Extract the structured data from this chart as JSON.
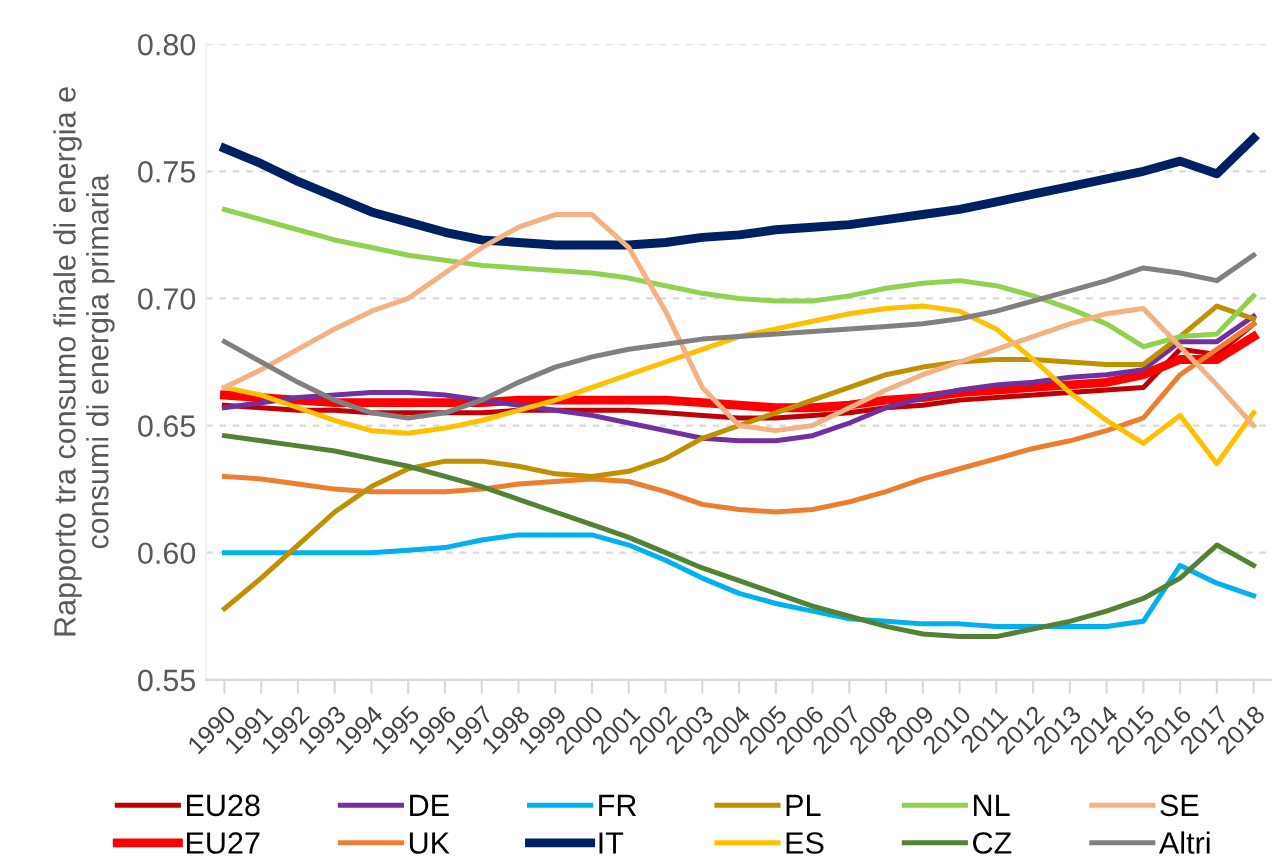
{
  "chart_data": {
    "type": "line",
    "ylabel": "Rapporto tra consumo finale di energia e\nconsumi di energia primaria",
    "categories": [
      "1990",
      "1991",
      "1992",
      "1993",
      "1994",
      "1995",
      "1996",
      "1997",
      "1998",
      "1999",
      "2000",
      "2001",
      "2002",
      "2003",
      "2004",
      "2005",
      "2006",
      "2007",
      "2008",
      "2009",
      "2010",
      "2011",
      "2012",
      "2013",
      "2014",
      "2015",
      "2016",
      "2017",
      "2018"
    ],
    "ylim": [
      0.55,
      0.8
    ],
    "yticks": [
      {
        "value": 0.55,
        "label": "0.55"
      },
      {
        "value": 0.6,
        "label": "0.60"
      },
      {
        "value": 0.65,
        "label": "0.65"
      },
      {
        "value": 0.7,
        "label": "0.70"
      },
      {
        "value": 0.75,
        "label": "0.75"
      },
      {
        "value": 0.8,
        "label": "0.80"
      }
    ],
    "grid": "y",
    "legend": "bottom",
    "marker": "none",
    "line_style": "solid",
    "series": [
      {
        "name": "EU28",
        "color": "#c00000",
        "values": [
          0.658,
          0.657,
          0.656,
          0.656,
          0.655,
          0.655,
          0.655,
          0.655,
          0.656,
          0.656,
          0.656,
          0.656,
          0.655,
          0.654,
          0.653,
          0.653,
          0.654,
          0.655,
          0.657,
          0.658,
          0.66,
          0.661,
          0.662,
          0.663,
          0.664,
          0.665,
          0.68,
          0.678,
          0.69
        ]
      },
      {
        "name": "EU27",
        "color": "#ff0000",
        "values": [
          0.662,
          0.661,
          0.66,
          0.659,
          0.659,
          0.659,
          0.659,
          0.659,
          0.66,
          0.66,
          0.66,
          0.66,
          0.66,
          0.659,
          0.658,
          0.657,
          0.657,
          0.658,
          0.66,
          0.661,
          0.663,
          0.664,
          0.665,
          0.666,
          0.667,
          0.67,
          0.676,
          0.676,
          0.685
        ]
      },
      {
        "name": "DE",
        "color": "#7030a0",
        "values": [
          0.657,
          0.659,
          0.661,
          0.662,
          0.663,
          0.663,
          0.662,
          0.66,
          0.658,
          0.656,
          0.654,
          0.651,
          0.648,
          0.645,
          0.644,
          0.644,
          0.646,
          0.651,
          0.657,
          0.661,
          0.664,
          0.666,
          0.667,
          0.669,
          0.67,
          0.672,
          0.683,
          0.683,
          0.693
        ]
      },
      {
        "name": "UK",
        "color": "#ed7d31",
        "values": [
          0.63,
          0.629,
          0.627,
          0.625,
          0.624,
          0.624,
          0.624,
          0.625,
          0.627,
          0.628,
          0.629,
          0.628,
          0.624,
          0.619,
          0.617,
          0.616,
          0.617,
          0.62,
          0.624,
          0.629,
          0.633,
          0.637,
          0.641,
          0.644,
          0.648,
          0.653,
          0.67,
          0.68,
          0.69
        ]
      },
      {
        "name": "FR",
        "color": "#00b0f0",
        "values": [
          0.6,
          0.6,
          0.6,
          0.6,
          0.6,
          0.601,
          0.602,
          0.605,
          0.607,
          0.607,
          0.607,
          0.603,
          0.597,
          0.59,
          0.584,
          0.58,
          0.577,
          0.574,
          0.573,
          0.572,
          0.572,
          0.571,
          0.571,
          0.571,
          0.571,
          0.573,
          0.595,
          0.588,
          0.583
        ]
      },
      {
        "name": "IT",
        "color": "#002060",
        "values": [
          0.759,
          0.753,
          0.746,
          0.74,
          0.734,
          0.73,
          0.726,
          0.723,
          0.722,
          0.721,
          0.721,
          0.721,
          0.722,
          0.724,
          0.725,
          0.727,
          0.728,
          0.729,
          0.731,
          0.733,
          0.735,
          0.738,
          0.741,
          0.744,
          0.747,
          0.75,
          0.754,
          0.749,
          0.763
        ]
      },
      {
        "name": "PL",
        "color": "#bf9000",
        "values": [
          0.578,
          0.59,
          0.603,
          0.616,
          0.626,
          0.633,
          0.636,
          0.636,
          0.634,
          0.631,
          0.63,
          0.632,
          0.637,
          0.645,
          0.65,
          0.655,
          0.66,
          0.665,
          0.67,
          0.673,
          0.675,
          0.676,
          0.676,
          0.675,
          0.674,
          0.674,
          0.685,
          0.697,
          0.692
        ]
      },
      {
        "name": "ES",
        "color": "#ffc000",
        "values": [
          0.665,
          0.662,
          0.657,
          0.652,
          0.648,
          0.647,
          0.649,
          0.652,
          0.656,
          0.66,
          0.665,
          0.67,
          0.675,
          0.68,
          0.685,
          0.688,
          0.691,
          0.694,
          0.696,
          0.697,
          0.695,
          0.688,
          0.676,
          0.663,
          0.652,
          0.643,
          0.654,
          0.635,
          0.655
        ]
      },
      {
        "name": "NL",
        "color": "#92d050",
        "values": [
          0.735,
          0.731,
          0.727,
          0.723,
          0.72,
          0.717,
          0.715,
          0.713,
          0.712,
          0.711,
          0.71,
          0.708,
          0.705,
          0.702,
          0.7,
          0.699,
          0.699,
          0.701,
          0.704,
          0.706,
          0.707,
          0.705,
          0.701,
          0.696,
          0.69,
          0.681,
          0.685,
          0.686,
          0.701
        ]
      },
      {
        "name": "CZ",
        "color": "#548235",
        "values": [
          0.646,
          0.644,
          0.642,
          0.64,
          0.637,
          0.634,
          0.63,
          0.626,
          0.621,
          0.616,
          0.611,
          0.606,
          0.6,
          0.594,
          0.589,
          0.584,
          0.579,
          0.575,
          0.571,
          0.568,
          0.567,
          0.567,
          0.57,
          0.573,
          0.577,
          0.582,
          0.59,
          0.603,
          0.595
        ]
      },
      {
        "name": "SE",
        "color": "#f4b183",
        "values": [
          0.665,
          0.672,
          0.68,
          0.688,
          0.695,
          0.7,
          0.71,
          0.72,
          0.728,
          0.733,
          0.733,
          0.72,
          0.695,
          0.665,
          0.65,
          0.648,
          0.65,
          0.657,
          0.664,
          0.67,
          0.675,
          0.68,
          0.685,
          0.69,
          0.694,
          0.696,
          0.681,
          0.666,
          0.65
        ]
      },
      {
        "name": "Altri",
        "color": "#808080",
        "values": [
          0.683,
          0.675,
          0.667,
          0.66,
          0.655,
          0.653,
          0.655,
          0.66,
          0.667,
          0.673,
          0.677,
          0.68,
          0.682,
          0.684,
          0.685,
          0.686,
          0.687,
          0.688,
          0.689,
          0.69,
          0.692,
          0.695,
          0.699,
          0.703,
          0.707,
          0.712,
          0.71,
          0.707,
          0.717
        ]
      }
    ]
  }
}
